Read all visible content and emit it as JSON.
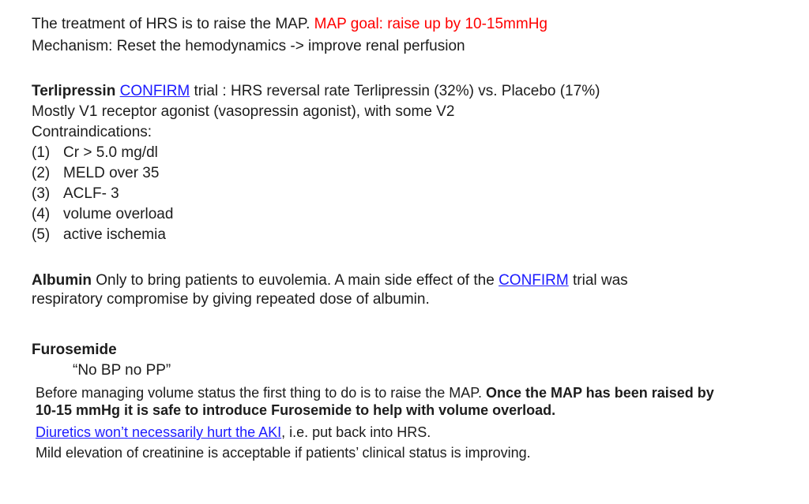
{
  "colors": {
    "red": "#ff0000",
    "link": "#1b1aff",
    "text": "#1c1c1c"
  },
  "intro": {
    "line1": [
      {
        "t": "The treatment of HRS is to raise the MAP. ",
        "name": "treatment-statement"
      },
      {
        "t": "MAP goal: raise up by 10-15mmHg",
        "s": "red",
        "name": "map-goal-highlight"
      }
    ],
    "line2": [
      {
        "t": "Mechanism: Reset the hemodynamics -> improve renal perfusion",
        "name": "mechanism-statement"
      }
    ]
  },
  "terlipressin": {
    "heading_line": [
      {
        "t": "Terlipressin ",
        "s": "bold",
        "name": "terlipressin-heading"
      },
      {
        "t": "CONFIRM",
        "s": "link",
        "name": "confirm-trial-link"
      },
      {
        "t": " trial : HRS reversal rate Terlipressin (32%) vs. Placebo (17%)",
        "name": "confirm-trial-results"
      }
    ],
    "mechanism_line": [
      {
        "t": "Mostly V1 receptor agonist (vasopressin agonist), with some V2",
        "name": "receptor-description"
      }
    ],
    "contraindications_label": [
      {
        "t": "Contraindications:",
        "name": "contraindications-label"
      }
    ],
    "contraindications": [
      {
        "num": "(1)",
        "text": "Cr > 5.0 mg/dl"
      },
      {
        "num": "(2)",
        "text": "MELD over 35"
      },
      {
        "num": "(3)",
        "text": "ACLF- 3"
      },
      {
        "num": "(4)",
        "text": "volume overload"
      },
      {
        "num": "(5)",
        "text": "active ischemia"
      }
    ]
  },
  "albumin": {
    "line1": [
      {
        "t": "Albumin",
        "s": "bold",
        "name": "albumin-heading"
      },
      {
        "t": " Only to bring patients to euvolemia. A main side effect of the ",
        "name": "albumin-text"
      },
      {
        "t": "CONFIRM",
        "s": "link",
        "name": "confirm-trial-link"
      },
      {
        "t": " trial was",
        "name": "albumin-text"
      }
    ],
    "line2": [
      {
        "t": "respiratory compromise by giving repeated dose of albumin.",
        "name": "albumin-text"
      }
    ]
  },
  "furosemide": {
    "heading": [
      {
        "t": "Furosemide",
        "s": "bold",
        "name": "furosemide-heading"
      }
    ],
    "quote": [
      {
        "t": "“No BP no PP”",
        "name": "bp-pp-quote"
      }
    ],
    "para_line1": [
      {
        "t": "Before managing volume status the first thing to do is to raise the MAP. ",
        "name": "furosemide-text"
      },
      {
        "t": "Once the MAP has been raised by",
        "s": "bold",
        "name": "map-raised-emphasis"
      }
    ],
    "para_line2": [
      {
        "t": "10-15 mmHg it is safe to introduce Furosemide to help with volume overload.",
        "s": "bold",
        "name": "map-raised-emphasis"
      }
    ],
    "diuretics_line": [
      {
        "t": "Diuretics won’t necessarily hurt the AKI",
        "s": "link",
        "name": "diuretics-aki-link"
      },
      {
        "t": ", i.e. put back into HRS.",
        "name": "diuretics-text"
      }
    ],
    "final_line": [
      {
        "t": "Mild elevation of creatinine is acceptable if patients’ clinical status is improving.",
        "name": "creatinine-text"
      }
    ]
  }
}
